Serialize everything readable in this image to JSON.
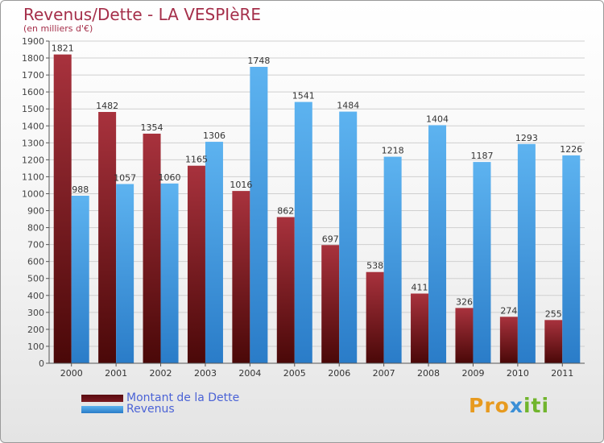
{
  "chart_data": {
    "type": "bar",
    "title": "Revenus/Dette - LA VESPIèRE",
    "subtitle": "(en milliers d'€)",
    "categories": [
      "2000",
      "2001",
      "2002",
      "2003",
      "2004",
      "2005",
      "2006",
      "2007",
      "2008",
      "2009",
      "2010",
      "2011"
    ],
    "series": [
      {
        "name": "Montant de la Dette",
        "color": "#7a1a22",
        "values": [
          1821,
          1482,
          1354,
          1165,
          1016,
          862,
          697,
          538,
          411,
          326,
          274,
          255
        ],
        "labels": [
          "1821",
          "1482",
          "1354",
          "1165",
          "1016",
          "862",
          "697",
          "538",
          "411",
          "326",
          "274",
          "255"
        ]
      },
      {
        "name": "Revenus",
        "color": "#4ba3e6",
        "values": [
          988,
          1057,
          1060,
          1306,
          1748,
          1541,
          1484,
          1218,
          1404,
          1187,
          1293,
          1226
        ],
        "labels": [
          "988",
          "1057",
          "1060",
          "1306",
          "1748",
          "1541",
          "1484",
          "1218",
          "1404",
          "1187",
          "1293",
          "1226"
        ]
      }
    ],
    "ylim": [
      0,
      1900
    ],
    "yticks": [
      0,
      100,
      200,
      300,
      400,
      500,
      600,
      700,
      800,
      900,
      1000,
      1100,
      1200,
      1300,
      1400,
      1500,
      1600,
      1700,
      1800,
      1900
    ],
    "grid": true,
    "legend": "bottom-left"
  },
  "brand": {
    "p1": "Pro",
    "p2": "x",
    "p3": "iti"
  }
}
